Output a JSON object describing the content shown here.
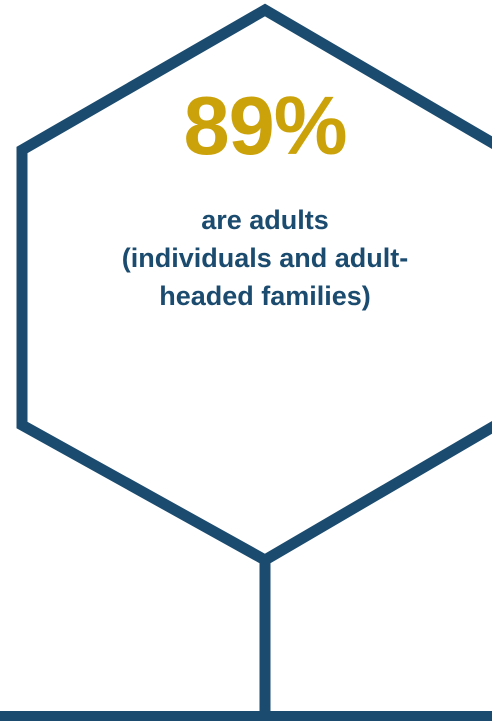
{
  "stat": {
    "value": "89%",
    "lines": [
      "are adults",
      "(individuals and adult-",
      "headed families)"
    ]
  },
  "colors": {
    "accent": "#CBA20A",
    "outline": "#1B4B6E",
    "text": "#1B4B6E",
    "background": "#FFFFFF"
  }
}
